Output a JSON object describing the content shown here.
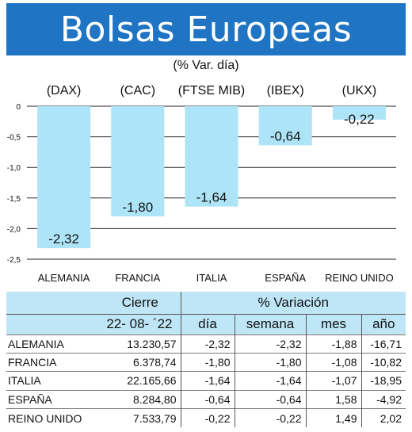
{
  "header": {
    "title": "Bolsas Europeas",
    "subtitle": "(% Var. día)"
  },
  "colors": {
    "banner": "#1f74c3",
    "bar": "#aee4f7",
    "table_header": "#bfe6f6"
  },
  "chart_data": {
    "type": "bar",
    "categories": [
      "ALEMANIA",
      "FRANCIA",
      "ITALIA",
      "ESPAÑA",
      "REINO UNIDO"
    ],
    "index_labels": [
      "(DAX)",
      "(CAC)",
      "(FTSE MIB)",
      "(IBEX)",
      "(UKX)"
    ],
    "values": [
      -2.32,
      -1.8,
      -1.64,
      -0.64,
      -0.22
    ],
    "value_labels": [
      "-2,32",
      "-1,80",
      "-1,64",
      "-0,64",
      "-0,22"
    ],
    "yticks": [
      0,
      -0.5,
      -1.0,
      -1.5,
      -2.0,
      -2.5
    ],
    "ytick_labels": [
      "0",
      "-0,5",
      "-1,0",
      "-1,5",
      "-2,0",
      "-2,5"
    ],
    "ylim": [
      -2.5,
      0
    ],
    "grid": true,
    "title": "Bolsas Europeas",
    "subtitle": "(% Var. día)"
  },
  "table": {
    "header_cierre": "Cierre",
    "header_variacion": "% Variación",
    "date": "22- 08- ´22",
    "columns": [
      "día",
      "semana",
      "mes",
      "año"
    ],
    "rows": [
      {
        "name": "ALEMANIA",
        "cierre": "13.230,57",
        "dia": "-2,32",
        "semana": "-2,32",
        "mes": "-1,88",
        "ano": "-16,71"
      },
      {
        "name": "FRANCIA",
        "cierre": "6.378,74",
        "dia": "-1,80",
        "semana": "-1,80",
        "mes": "-1,08",
        "ano": "-10,82"
      },
      {
        "name": "ITALIA",
        "cierre": "22.165,66",
        "dia": "-1,64",
        "semana": "-1,64",
        "mes": "-1,07",
        "ano": "-18,95"
      },
      {
        "name": "ESPAÑA",
        "cierre": "8.284,80",
        "dia": "-0,64",
        "semana": "-0,64",
        "mes": "1,58",
        "ano": "-4,92"
      },
      {
        "name": "REINO UNIDO",
        "cierre": "7.533,79",
        "dia": "-0,22",
        "semana": "-0,22",
        "mes": "1,49",
        "ano": "2,02"
      }
    ]
  }
}
